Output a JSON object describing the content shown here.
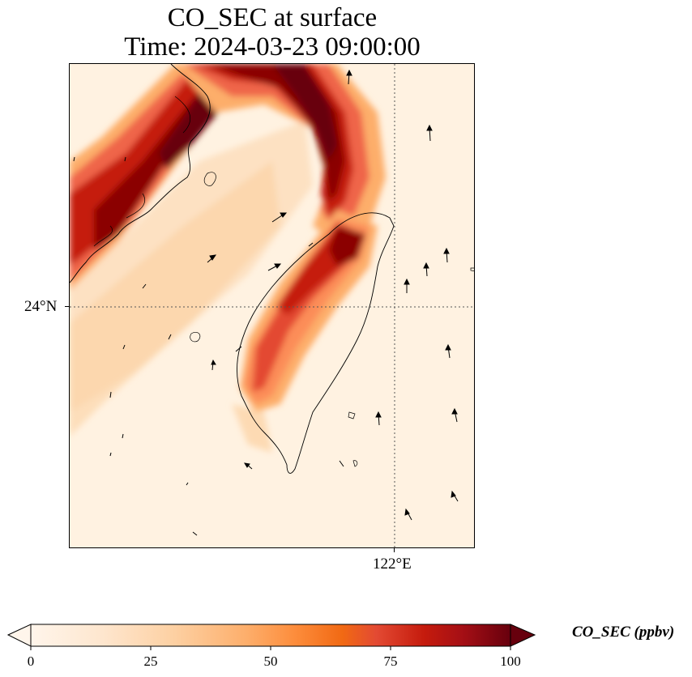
{
  "title": {
    "line1": "CO_SEC at surface",
    "line2": "Time: 2024-03-23 09:00:00"
  },
  "map": {
    "lat_label": "24°N",
    "lon_label": "122°E"
  },
  "colorbar": {
    "label": "CO_SEC (ppbv)",
    "ticks": [
      "0",
      "25",
      "50",
      "75",
      "100"
    ],
    "min": 0,
    "max": 100,
    "extend": "both",
    "colormap": [
      "#fff5eb",
      "#fee6ce",
      "#fdd0a2",
      "#fdae6b",
      "#fd8d3c",
      "#f16913",
      "#e34a33",
      "#c51b0d",
      "#a50f15",
      "#67000d"
    ]
  }
}
